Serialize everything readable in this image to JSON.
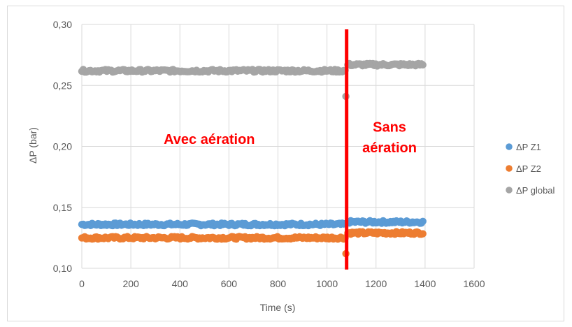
{
  "chart_data": {
    "type": "scatter",
    "title": "",
    "xlabel": "Time (s)",
    "ylabel": "ΔP (bar)",
    "xlim": [
      0,
      1600
    ],
    "ylim": [
      0.1,
      0.3
    ],
    "x_ticks": [
      "0",
      "200",
      "400",
      "600",
      "800",
      "1000",
      "1200",
      "1400",
      "1600"
    ],
    "y_ticks": [
      "0,10",
      "0,15",
      "0,20",
      "0,25",
      "0,30"
    ],
    "grid": "vertical and horizontal",
    "legend_position": "right",
    "series": [
      {
        "name": "ΔP Z1",
        "color": "#5b9bd5",
        "segments": [
          {
            "x_start": 0,
            "x_end": 1075,
            "y": 0.136
          },
          {
            "x_start": 1085,
            "x_end": 1395,
            "y": 0.138
          }
        ]
      },
      {
        "name": "ΔP Z2",
        "color": "#ed7d31",
        "segments": [
          {
            "x_start": 0,
            "x_end": 1075,
            "y": 0.125
          },
          {
            "x_start": 1085,
            "x_end": 1395,
            "y": 0.129
          }
        ],
        "outliers": [
          {
            "x": 1077,
            "y": 0.112
          }
        ]
      },
      {
        "name": "ΔP global",
        "color": "#a5a5a5",
        "segments": [
          {
            "x_start": 0,
            "x_end": 1075,
            "y": 0.262
          },
          {
            "x_start": 1085,
            "x_end": 1395,
            "y": 0.267
          }
        ],
        "outliers": [
          {
            "x": 1077,
            "y": 0.241
          }
        ]
      }
    ],
    "vertical_line": {
      "x": 1080,
      "color": "#ff0000"
    },
    "annotations": [
      {
        "text": "Avec aération",
        "x": 520,
        "y": 0.202
      },
      {
        "text": "Sans",
        "x": 1255,
        "y": 0.212
      },
      {
        "text": "aération",
        "x": 1255,
        "y": 0.195
      }
    ]
  }
}
